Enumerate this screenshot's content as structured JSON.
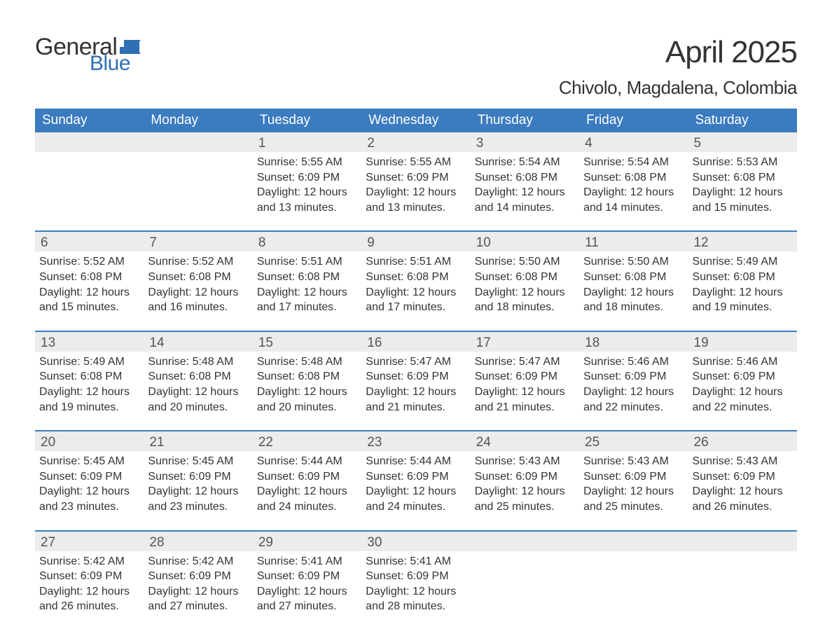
{
  "logo": {
    "word1": "General",
    "word2": "Blue"
  },
  "title": "April 2025",
  "location": "Chivolo, Magdalena, Colombia",
  "colors": {
    "header_bg": "#3b7bbf",
    "header_text": "#ffffff",
    "band_bg": "#ececec",
    "rule": "#3b7bbf",
    "logo_blue": "#2d6fb5",
    "text": "#333333",
    "page_bg": "#ffffff"
  },
  "day_labels": [
    "Sunday",
    "Monday",
    "Tuesday",
    "Wednesday",
    "Thursday",
    "Friday",
    "Saturday"
  ],
  "weeks": [
    [
      null,
      null,
      {
        "n": "1",
        "sunrise": "Sunrise: 5:55 AM",
        "sunset": "Sunset: 6:09 PM",
        "daylight": "Daylight: 12 hours and 13 minutes."
      },
      {
        "n": "2",
        "sunrise": "Sunrise: 5:55 AM",
        "sunset": "Sunset: 6:09 PM",
        "daylight": "Daylight: 12 hours and 13 minutes."
      },
      {
        "n": "3",
        "sunrise": "Sunrise: 5:54 AM",
        "sunset": "Sunset: 6:08 PM",
        "daylight": "Daylight: 12 hours and 14 minutes."
      },
      {
        "n": "4",
        "sunrise": "Sunrise: 5:54 AM",
        "sunset": "Sunset: 6:08 PM",
        "daylight": "Daylight: 12 hours and 14 minutes."
      },
      {
        "n": "5",
        "sunrise": "Sunrise: 5:53 AM",
        "sunset": "Sunset: 6:08 PM",
        "daylight": "Daylight: 12 hours and 15 minutes."
      }
    ],
    [
      {
        "n": "6",
        "sunrise": "Sunrise: 5:52 AM",
        "sunset": "Sunset: 6:08 PM",
        "daylight": "Daylight: 12 hours and 15 minutes."
      },
      {
        "n": "7",
        "sunrise": "Sunrise: 5:52 AM",
        "sunset": "Sunset: 6:08 PM",
        "daylight": "Daylight: 12 hours and 16 minutes."
      },
      {
        "n": "8",
        "sunrise": "Sunrise: 5:51 AM",
        "sunset": "Sunset: 6:08 PM",
        "daylight": "Daylight: 12 hours and 17 minutes."
      },
      {
        "n": "9",
        "sunrise": "Sunrise: 5:51 AM",
        "sunset": "Sunset: 6:08 PM",
        "daylight": "Daylight: 12 hours and 17 minutes."
      },
      {
        "n": "10",
        "sunrise": "Sunrise: 5:50 AM",
        "sunset": "Sunset: 6:08 PM",
        "daylight": "Daylight: 12 hours and 18 minutes."
      },
      {
        "n": "11",
        "sunrise": "Sunrise: 5:50 AM",
        "sunset": "Sunset: 6:08 PM",
        "daylight": "Daylight: 12 hours and 18 minutes."
      },
      {
        "n": "12",
        "sunrise": "Sunrise: 5:49 AM",
        "sunset": "Sunset: 6:08 PM",
        "daylight": "Daylight: 12 hours and 19 minutes."
      }
    ],
    [
      {
        "n": "13",
        "sunrise": "Sunrise: 5:49 AM",
        "sunset": "Sunset: 6:08 PM",
        "daylight": "Daylight: 12 hours and 19 minutes."
      },
      {
        "n": "14",
        "sunrise": "Sunrise: 5:48 AM",
        "sunset": "Sunset: 6:08 PM",
        "daylight": "Daylight: 12 hours and 20 minutes."
      },
      {
        "n": "15",
        "sunrise": "Sunrise: 5:48 AM",
        "sunset": "Sunset: 6:08 PM",
        "daylight": "Daylight: 12 hours and 20 minutes."
      },
      {
        "n": "16",
        "sunrise": "Sunrise: 5:47 AM",
        "sunset": "Sunset: 6:09 PM",
        "daylight": "Daylight: 12 hours and 21 minutes."
      },
      {
        "n": "17",
        "sunrise": "Sunrise: 5:47 AM",
        "sunset": "Sunset: 6:09 PM",
        "daylight": "Daylight: 12 hours and 21 minutes."
      },
      {
        "n": "18",
        "sunrise": "Sunrise: 5:46 AM",
        "sunset": "Sunset: 6:09 PM",
        "daylight": "Daylight: 12 hours and 22 minutes."
      },
      {
        "n": "19",
        "sunrise": "Sunrise: 5:46 AM",
        "sunset": "Sunset: 6:09 PM",
        "daylight": "Daylight: 12 hours and 22 minutes."
      }
    ],
    [
      {
        "n": "20",
        "sunrise": "Sunrise: 5:45 AM",
        "sunset": "Sunset: 6:09 PM",
        "daylight": "Daylight: 12 hours and 23 minutes."
      },
      {
        "n": "21",
        "sunrise": "Sunrise: 5:45 AM",
        "sunset": "Sunset: 6:09 PM",
        "daylight": "Daylight: 12 hours and 23 minutes."
      },
      {
        "n": "22",
        "sunrise": "Sunrise: 5:44 AM",
        "sunset": "Sunset: 6:09 PM",
        "daylight": "Daylight: 12 hours and 24 minutes."
      },
      {
        "n": "23",
        "sunrise": "Sunrise: 5:44 AM",
        "sunset": "Sunset: 6:09 PM",
        "daylight": "Daylight: 12 hours and 24 minutes."
      },
      {
        "n": "24",
        "sunrise": "Sunrise: 5:43 AM",
        "sunset": "Sunset: 6:09 PM",
        "daylight": "Daylight: 12 hours and 25 minutes."
      },
      {
        "n": "25",
        "sunrise": "Sunrise: 5:43 AM",
        "sunset": "Sunset: 6:09 PM",
        "daylight": "Daylight: 12 hours and 25 minutes."
      },
      {
        "n": "26",
        "sunrise": "Sunrise: 5:43 AM",
        "sunset": "Sunset: 6:09 PM",
        "daylight": "Daylight: 12 hours and 26 minutes."
      }
    ],
    [
      {
        "n": "27",
        "sunrise": "Sunrise: 5:42 AM",
        "sunset": "Sunset: 6:09 PM",
        "daylight": "Daylight: 12 hours and 26 minutes."
      },
      {
        "n": "28",
        "sunrise": "Sunrise: 5:42 AM",
        "sunset": "Sunset: 6:09 PM",
        "daylight": "Daylight: 12 hours and 27 minutes."
      },
      {
        "n": "29",
        "sunrise": "Sunrise: 5:41 AM",
        "sunset": "Sunset: 6:09 PM",
        "daylight": "Daylight: 12 hours and 27 minutes."
      },
      {
        "n": "30",
        "sunrise": "Sunrise: 5:41 AM",
        "sunset": "Sunset: 6:09 PM",
        "daylight": "Daylight: 12 hours and 28 minutes."
      },
      null,
      null,
      null
    ]
  ]
}
